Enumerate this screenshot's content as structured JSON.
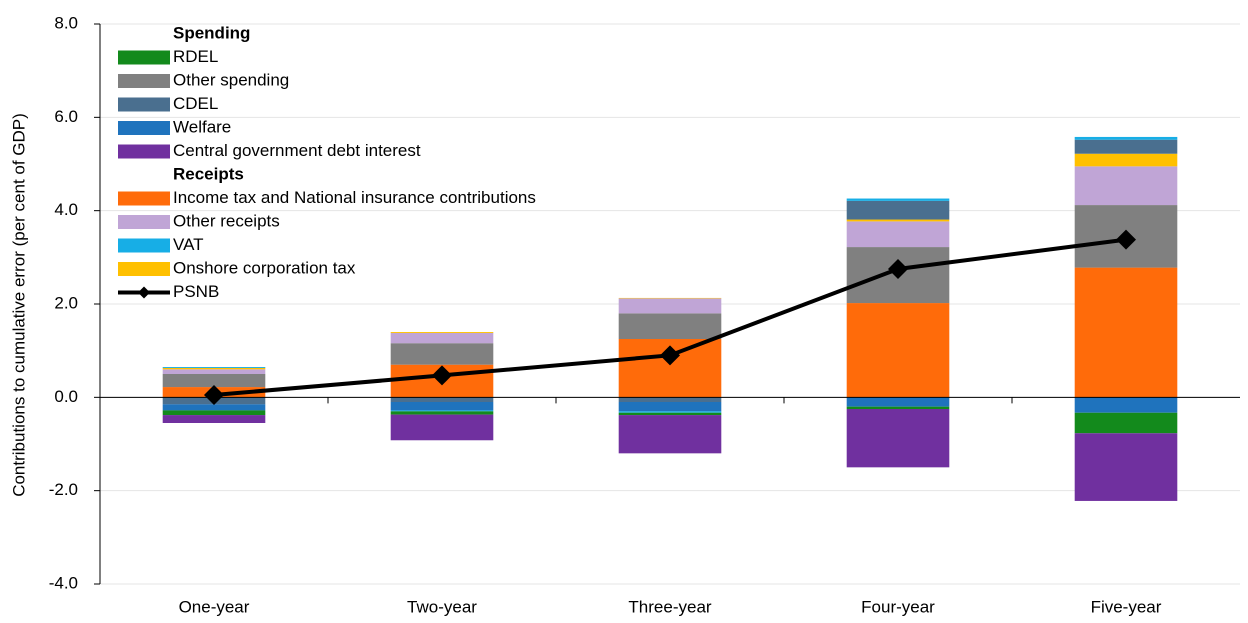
{
  "chart_data": {
    "type": "bar",
    "stacked": true,
    "y_label": "Contributions to cumulative error (per cent of GDP)",
    "categories": [
      "One-year",
      "Two-year",
      "Three-year",
      "Four-year",
      "Five-year"
    ],
    "ylim": [
      -4,
      8
    ],
    "yticks": [
      {
        "value": -4,
        "label": "-4.0"
      },
      {
        "value": -2,
        "label": "-2.0"
      },
      {
        "value": 0,
        "label": "0.0"
      },
      {
        "value": 2,
        "label": "2.0"
      },
      {
        "value": 4,
        "label": "4.0"
      },
      {
        "value": 6,
        "label": "6.0"
      },
      {
        "value": 8,
        "label": "8.0"
      }
    ],
    "grid": true,
    "legend": "upper left",
    "series": [
      {
        "name": "RDEL",
        "group": "Spending",
        "color": "#138a1c",
        "values": [
          -0.1,
          -0.07,
          -0.05,
          -0.05,
          -0.44
        ]
      },
      {
        "name": "Other spending",
        "group": "Spending",
        "color": "#808080",
        "values": [
          0.28,
          0.46,
          0.55,
          1.2,
          1.34
        ]
      },
      {
        "name": "CDEL",
        "group": "Spending",
        "color": "#4a6f8f",
        "values": [
          -0.15,
          -0.1,
          -0.1,
          0.4,
          0.3
        ]
      },
      {
        "name": "Welfare",
        "group": "Spending",
        "color": "#1f73bd",
        "values": [
          -0.13,
          -0.18,
          -0.2,
          -0.2,
          -0.33
        ]
      },
      {
        "name": "Central government debt interest",
        "group": "Spending",
        "color": "#70309f",
        "values": [
          -0.17,
          -0.55,
          -0.82,
          -1.25,
          -1.45
        ]
      },
      {
        "name": "Income tax and National insurance contributions",
        "group": "Receipts",
        "color": "#ff6b0a",
        "values": [
          0.22,
          0.7,
          1.25,
          2.02,
          2.78
        ]
      },
      {
        "name": "Other receipts",
        "group": "Receipts",
        "color": "#c0a5d6",
        "values": [
          0.1,
          0.22,
          0.32,
          0.55,
          0.83
        ]
      },
      {
        "name": "VAT",
        "group": "Receipts",
        "color": "#17aee6",
        "values": [
          0.02,
          -0.02,
          -0.03,
          0.05,
          0.06
        ]
      },
      {
        "name": "Onshore corporation tax",
        "group": "Receipts",
        "color": "#ffc000",
        "values": [
          0.03,
          0.02,
          0.01,
          0.04,
          0.27
        ]
      },
      {
        "name": "PSNB",
        "type": "line",
        "color": "#000000",
        "values": [
          0.05,
          0.47,
          0.9,
          2.75,
          3.38
        ]
      }
    ]
  }
}
